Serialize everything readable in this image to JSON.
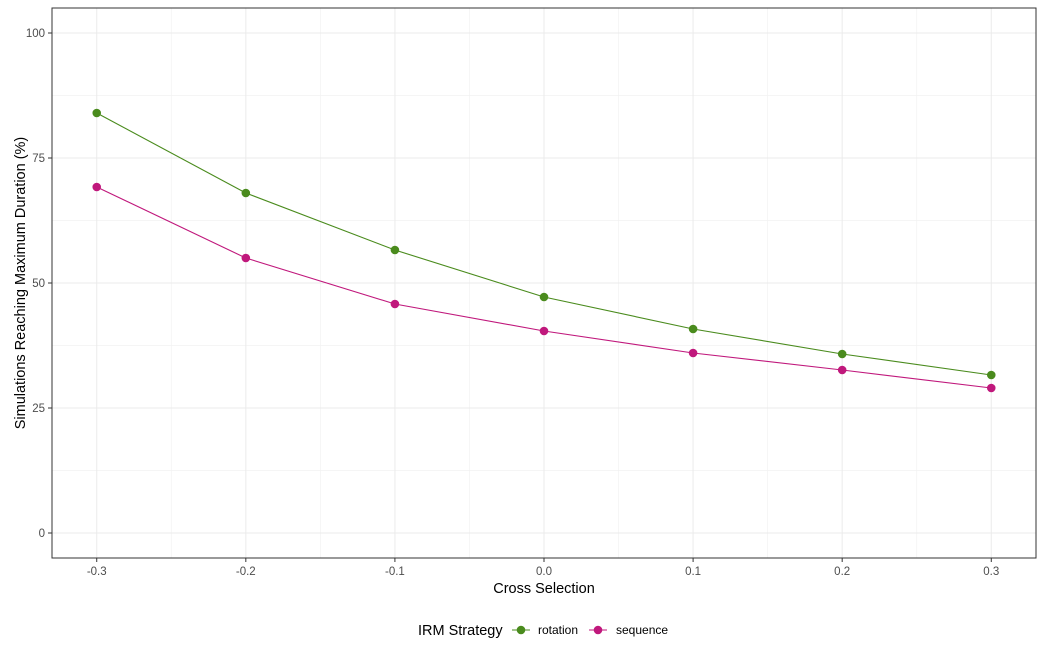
{
  "chart_data": {
    "type": "line",
    "title": "",
    "xlabel": "Cross Selection",
    "ylabel": "Simulations Reaching Maximum Duration (%)",
    "x": [
      -0.3,
      -0.2,
      -0.1,
      0.0,
      0.1,
      0.2,
      0.3
    ],
    "x_tick_labels": [
      "-0.3",
      "-0.2",
      "-0.1",
      "0.0",
      "0.1",
      "0.2",
      "0.3"
    ],
    "y_ticks": [
      0,
      25,
      50,
      75,
      100
    ],
    "y_tick_labels": [
      "0",
      "25",
      "50",
      "75",
      "100"
    ],
    "xlim": [
      -0.33,
      0.33
    ],
    "ylim": [
      -5,
      105
    ],
    "grid": true,
    "legend": {
      "title": "IRM Strategy",
      "position": "bottom"
    },
    "series": [
      {
        "name": "rotation",
        "color": "#4a8b1d",
        "values": [
          84.0,
          68.0,
          56.6,
          47.2,
          40.8,
          35.8,
          31.6
        ]
      },
      {
        "name": "sequence",
        "color": "#c0187c",
        "values": [
          69.2,
          55.0,
          45.8,
          40.4,
          36.0,
          32.6,
          29.0
        ]
      }
    ]
  }
}
